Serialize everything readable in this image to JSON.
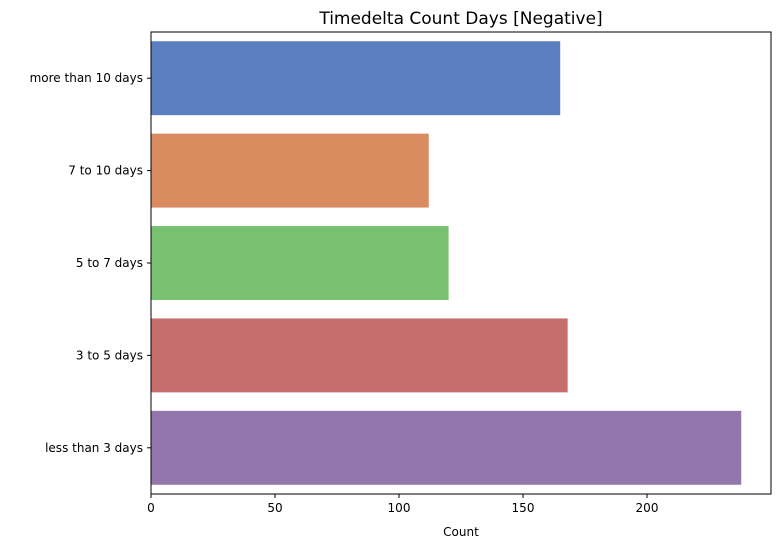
{
  "chart_data": {
    "type": "bar",
    "orientation": "horizontal",
    "title": "Timedelta Count Days [Negative]",
    "xlabel": "Count",
    "ylabel": "",
    "categories": [
      "more than 10 days",
      "7 to 10 days",
      "5 to 7 days",
      "3 to 5 days",
      "less than 3 days"
    ],
    "values": [
      165,
      112,
      120,
      168,
      238
    ],
    "colors": [
      "#5a7ec0",
      "#da8b60",
      "#77c170",
      "#c66e6d",
      "#9276ac"
    ],
    "xlim": [
      0,
      250
    ],
    "xticks": [
      0,
      50,
      100,
      150,
      200
    ],
    "grid": false,
    "legend": "none"
  }
}
